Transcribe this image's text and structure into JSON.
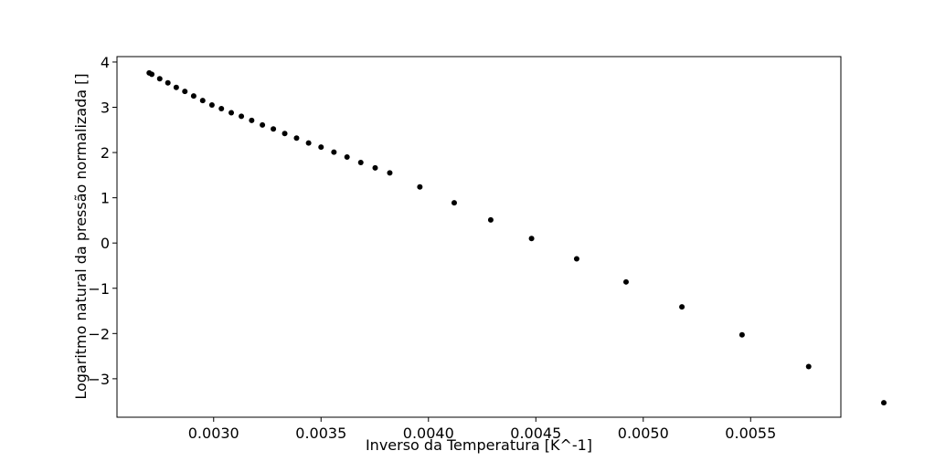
{
  "chart_data": {
    "type": "scatter",
    "title": "",
    "xlabel": "Inverso da Temperatura [K^-1]",
    "ylabel": "Logaritmo natural da pressão normalizada []",
    "xlim": [
      0.00255,
      0.00592
    ],
    "ylim": [
      -3.85,
      4.12
    ],
    "grid": false,
    "legend": "none",
    "x_ticks": [
      {
        "value": 0.003,
        "label": "0.0030"
      },
      {
        "value": 0.0035,
        "label": "0.0035"
      },
      {
        "value": 0.004,
        "label": "0.0040"
      },
      {
        "value": 0.0045,
        "label": "0.0045"
      },
      {
        "value": 0.005,
        "label": "0.0050"
      },
      {
        "value": 0.0055,
        "label": "0.0055"
      }
    ],
    "y_ticks": [
      {
        "value": 4,
        "label": "4"
      },
      {
        "value": 3,
        "label": "3"
      },
      {
        "value": 2,
        "label": "2"
      },
      {
        "value": 1,
        "label": "1"
      },
      {
        "value": 0,
        "label": "0"
      },
      {
        "value": -1,
        "label": "−1"
      },
      {
        "value": -2,
        "label": "−2"
      },
      {
        "value": -3,
        "label": "−3"
      }
    ],
    "colors": {
      "marker": "#000000",
      "axes": "#000000",
      "background": "#ffffff"
    },
    "series": [
      {
        "points": [
          {
            "x": 0.0027,
            "y": 3.76
          },
          {
            "x": 0.002712,
            "y": 3.73
          },
          {
            "x": 0.002749,
            "y": 3.63
          },
          {
            "x": 0.002787,
            "y": 3.54
          },
          {
            "x": 0.002826,
            "y": 3.44
          },
          {
            "x": 0.002866,
            "y": 3.35
          },
          {
            "x": 0.002907,
            "y": 3.25
          },
          {
            "x": 0.002949,
            "y": 3.15
          },
          {
            "x": 0.002992,
            "y": 3.05
          },
          {
            "x": 0.003036,
            "y": 2.97
          },
          {
            "x": 0.003082,
            "y": 2.88
          },
          {
            "x": 0.003129,
            "y": 2.8
          },
          {
            "x": 0.003177,
            "y": 2.71
          },
          {
            "x": 0.003227,
            "y": 2.61
          },
          {
            "x": 0.003278,
            "y": 2.52
          },
          {
            "x": 0.003331,
            "y": 2.42
          },
          {
            "x": 0.003386,
            "y": 2.32
          },
          {
            "x": 0.003442,
            "y": 2.21
          },
          {
            "x": 0.0035,
            "y": 2.12
          },
          {
            "x": 0.00356,
            "y": 2.01
          },
          {
            "x": 0.003621,
            "y": 1.9
          },
          {
            "x": 0.003685,
            "y": 1.78
          },
          {
            "x": 0.003752,
            "y": 1.66
          },
          {
            "x": 0.00382,
            "y": 1.55
          },
          {
            "x": 0.00396,
            "y": 1.24
          },
          {
            "x": 0.00412,
            "y": 0.89
          },
          {
            "x": 0.00429,
            "y": 0.51
          },
          {
            "x": 0.00448,
            "y": 0.1
          },
          {
            "x": 0.00469,
            "y": -0.35
          },
          {
            "x": 0.00492,
            "y": -0.86
          },
          {
            "x": 0.00518,
            "y": -1.41
          },
          {
            "x": 0.00546,
            "y": -2.03
          },
          {
            "x": 0.00577,
            "y": -2.73
          },
          {
            "x": 0.00612,
            "y": -3.53
          }
        ]
      }
    ]
  }
}
